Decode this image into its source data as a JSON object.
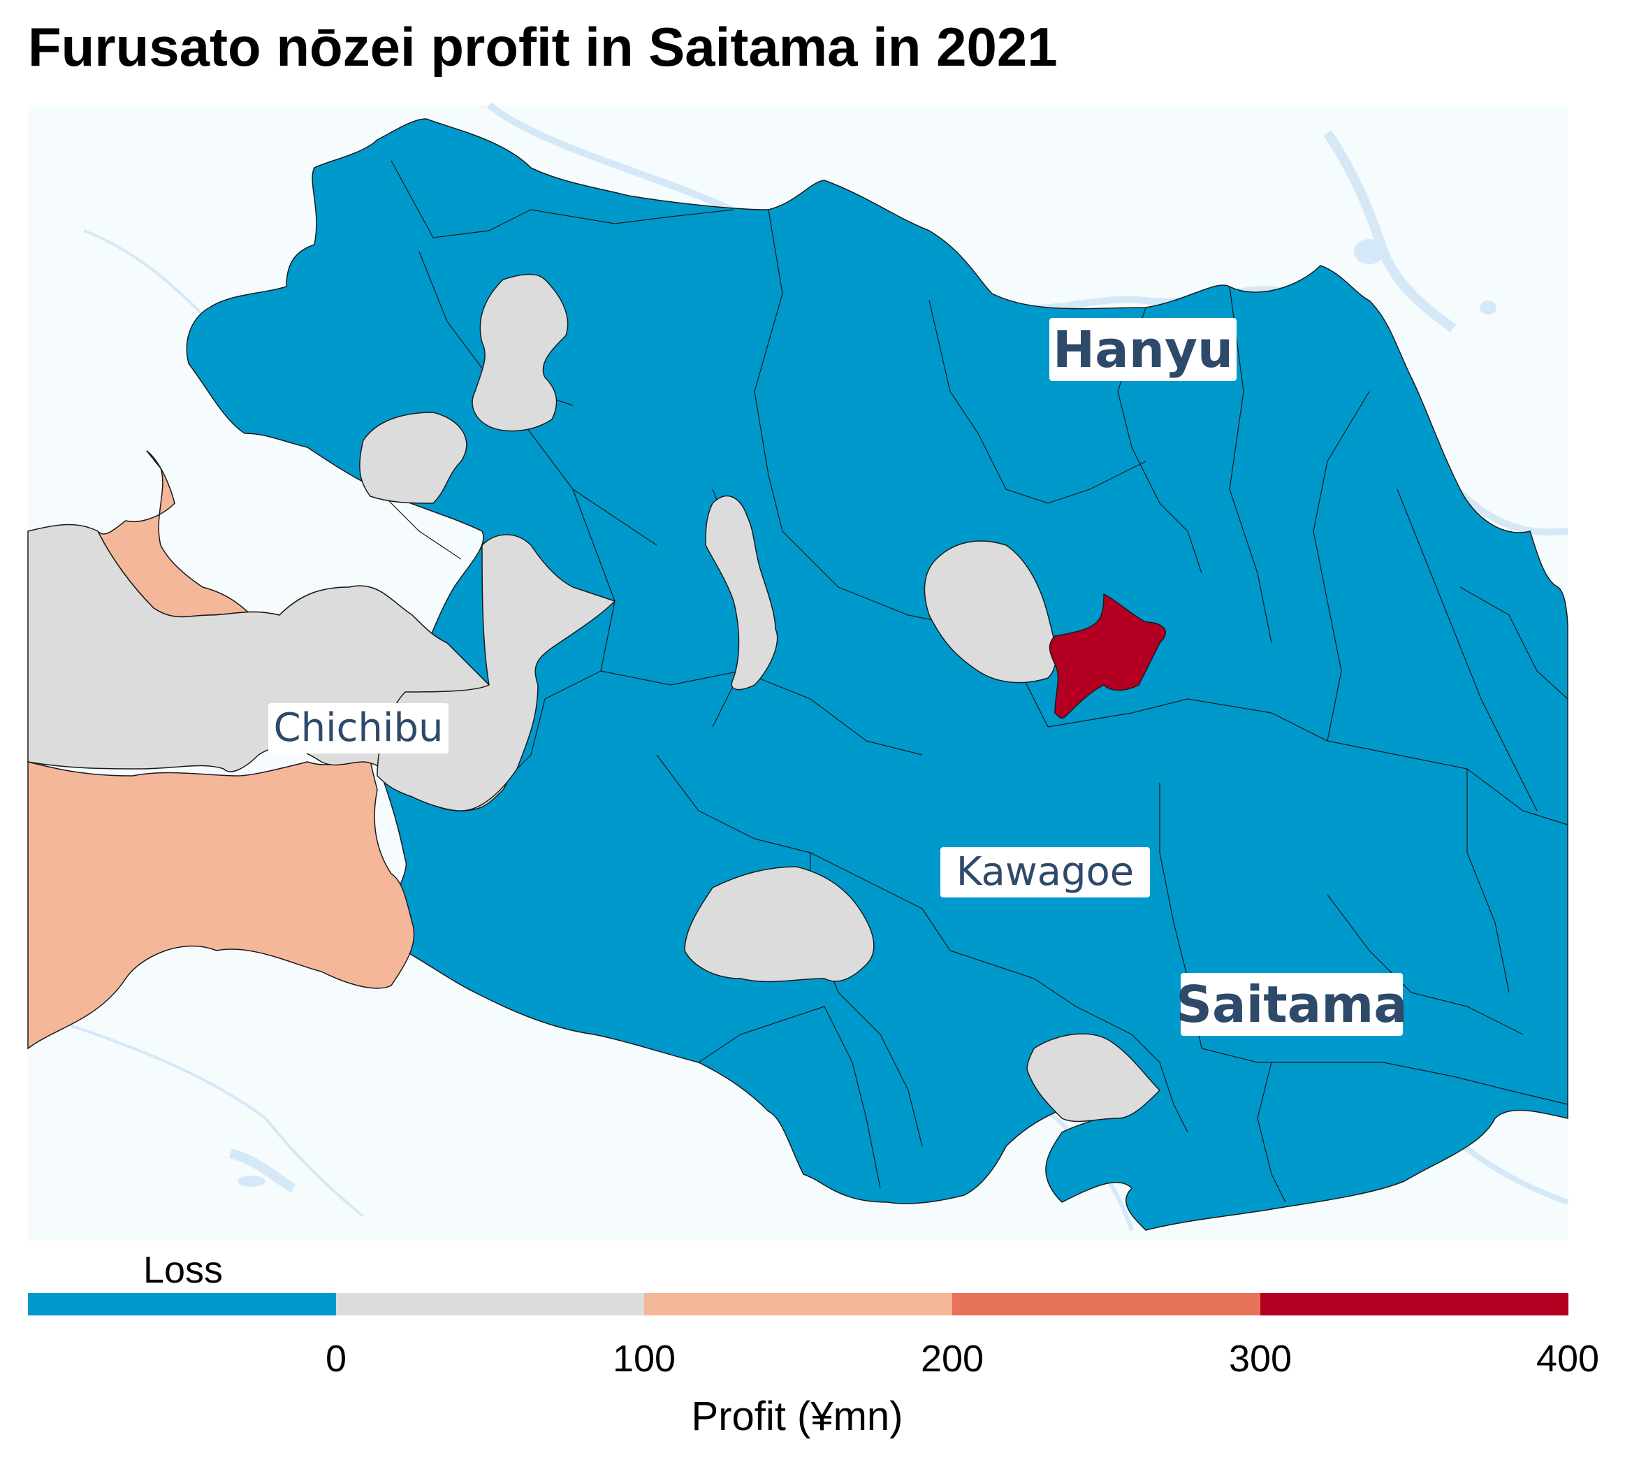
{
  "title": "Furusato nōzei profit in Saitama in 2021",
  "map": {
    "labels": {
      "hanyu": "Hanyu",
      "chichibu": "Chichibu",
      "kawagoe": "Kawagoe",
      "saitama": "Saitama"
    },
    "colors": {
      "background": "#f6fbfe",
      "water": "#d4e8f7",
      "loss": "#0099cc",
      "profit_0_100": "#dcdcdc",
      "profit_100_200": "#f5b79a",
      "profit_200_300": "#e6735a",
      "profit_300_400": "#b30022",
      "label_text": "#2e4a6b",
      "border": "#1a1a1a"
    }
  },
  "legend": {
    "loss_label": "Loss",
    "ticks": [
      "0",
      "100",
      "200",
      "300",
      "400"
    ],
    "title": "Profit (¥mn)",
    "bins": [
      {
        "name": "Loss",
        "color": "#0099cc"
      },
      {
        "name": "0–100",
        "color": "#dcdcdc"
      },
      {
        "name": "100–200",
        "color": "#f5b79a"
      },
      {
        "name": "200–300",
        "color": "#e6735a"
      },
      {
        "name": "300–400",
        "color": "#b30022"
      }
    ]
  }
}
